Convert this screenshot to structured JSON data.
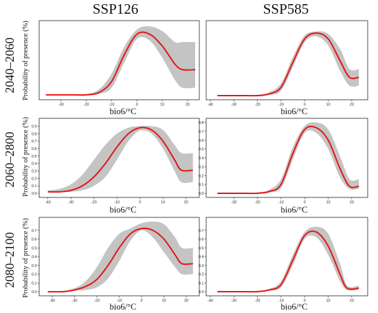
{
  "columns": [
    "SSP126",
    "SSP585"
  ],
  "rows": [
    "2040–2060",
    "2060–2800",
    "2080–2100"
  ],
  "ylabel": "Probability of presence (%)",
  "xlabel": "bio6/°C",
  "chart_data": [
    {
      "type": "line",
      "row": "2040–2060",
      "scenario": "SSP126",
      "xlim": [
        -37,
        23
      ],
      "ylim": [
        0,
        0.9
      ],
      "xticks": [
        -30,
        -20,
        -10,
        0,
        10,
        20
      ],
      "yticks": [],
      "x": [
        -36,
        -25,
        -20,
        -15,
        -10,
        -5,
        0,
        5,
        10,
        15,
        18,
        23
      ],
      "y": [
        0.01,
        0.01,
        0.01,
        0.04,
        0.18,
        0.52,
        0.78,
        0.78,
        0.63,
        0.4,
        0.33,
        0.33
      ],
      "lower": [
        0.01,
        0.01,
        0.01,
        0.02,
        0.1,
        0.42,
        0.72,
        0.7,
        0.48,
        0.2,
        0.1,
        0.1
      ],
      "upper": [
        0.01,
        0.01,
        0.02,
        0.08,
        0.28,
        0.62,
        0.84,
        0.88,
        0.82,
        0.68,
        0.68,
        0.68
      ]
    },
    {
      "type": "line",
      "row": "2040–2060",
      "scenario": "SSP585",
      "xlim": [
        -40,
        25
      ],
      "ylim": [
        0,
        0.85
      ],
      "xticks": [
        -40,
        -30,
        -20,
        -10,
        0,
        10,
        20
      ],
      "yticks": [],
      "x": [
        -37,
        -25,
        -20,
        -15,
        -10,
        -5,
        0,
        5,
        10,
        15,
        19,
        23
      ],
      "y": [
        0.0,
        0.0,
        0.0,
        0.02,
        0.1,
        0.4,
        0.68,
        0.75,
        0.68,
        0.42,
        0.22,
        0.22
      ],
      "lower": [
        0.0,
        0.0,
        0.0,
        0.01,
        0.06,
        0.34,
        0.64,
        0.71,
        0.6,
        0.3,
        0.12,
        0.12
      ],
      "upper": [
        0.0,
        0.0,
        0.01,
        0.04,
        0.15,
        0.46,
        0.72,
        0.77,
        0.74,
        0.56,
        0.32,
        0.32
      ]
    },
    {
      "type": "line",
      "row": "2060–2800",
      "scenario": "SSP126",
      "xlim": [
        -42,
        24
      ],
      "ylim": [
        0,
        0.95
      ],
      "xticks": [
        -40,
        -30,
        -20,
        -10,
        0,
        10,
        20
      ],
      "yticks": [
        0.0,
        0.1,
        0.2,
        0.3,
        0.4,
        0.5,
        0.6,
        0.7,
        0.8,
        0.9
      ],
      "x": [
        -40,
        -35,
        -30,
        -25,
        -20,
        -15,
        -10,
        -5,
        0,
        5,
        10,
        15,
        18,
        23
      ],
      "y": [
        0.02,
        0.02,
        0.04,
        0.1,
        0.22,
        0.4,
        0.62,
        0.8,
        0.88,
        0.85,
        0.7,
        0.45,
        0.31,
        0.31
      ],
      "lower": [
        0.01,
        0.01,
        0.02,
        0.04,
        0.1,
        0.22,
        0.45,
        0.7,
        0.84,
        0.8,
        0.6,
        0.3,
        0.15,
        0.15
      ],
      "upper": [
        0.04,
        0.06,
        0.12,
        0.25,
        0.45,
        0.65,
        0.8,
        0.88,
        0.9,
        0.9,
        0.85,
        0.65,
        0.54,
        0.54
      ]
    },
    {
      "type": "line",
      "row": "2060–2800",
      "scenario": "SSP585",
      "xlim": [
        -40,
        25
      ],
      "ylim": [
        0,
        0.8
      ],
      "xticks": [
        -30,
        -20,
        -10,
        0,
        10,
        20
      ],
      "yticks": [
        0.0,
        0.1,
        0.2,
        0.3,
        0.4,
        0.5,
        0.6,
        0.7,
        0.8
      ],
      "x": [
        -37,
        -25,
        -20,
        -15,
        -10,
        -5,
        0,
        5,
        10,
        15,
        19,
        23
      ],
      "y": [
        0.0,
        0.0,
        0.0,
        0.02,
        0.1,
        0.45,
        0.72,
        0.74,
        0.6,
        0.28,
        0.08,
        0.08
      ],
      "lower": [
        0.0,
        0.0,
        0.0,
        0.01,
        0.06,
        0.38,
        0.68,
        0.68,
        0.5,
        0.18,
        0.05,
        0.05
      ],
      "upper": [
        0.0,
        0.0,
        0.01,
        0.04,
        0.16,
        0.52,
        0.76,
        0.8,
        0.72,
        0.42,
        0.16,
        0.16
      ]
    },
    {
      "type": "line",
      "row": "2080–2100",
      "scenario": "SSP126",
      "xlim": [
        -44,
        24
      ],
      "ylim": [
        0,
        0.8
      ],
      "xticks": [
        -40,
        -30,
        -20,
        -10,
        0,
        10,
        20
      ],
      "yticks": [
        0.0,
        0.1,
        0.2,
        0.3,
        0.4,
        0.5,
        0.6,
        0.7
      ],
      "x": [
        -42,
        -35,
        -30,
        -25,
        -20,
        -15,
        -10,
        -5,
        0,
        5,
        10,
        15,
        18,
        23
      ],
      "y": [
        0.0,
        0.0,
        0.02,
        0.06,
        0.14,
        0.3,
        0.5,
        0.66,
        0.72,
        0.7,
        0.6,
        0.42,
        0.32,
        0.32
      ],
      "lower": [
        0.0,
        0.0,
        0.01,
        0.02,
        0.05,
        0.15,
        0.35,
        0.58,
        0.7,
        0.62,
        0.45,
        0.28,
        0.2,
        0.2
      ],
      "upper": [
        0.0,
        0.01,
        0.04,
        0.12,
        0.28,
        0.5,
        0.66,
        0.72,
        0.78,
        0.8,
        0.77,
        0.62,
        0.5,
        0.5
      ]
    },
    {
      "type": "line",
      "row": "2080–2100",
      "scenario": "SSP585",
      "xlim": [
        -40,
        25
      ],
      "ylim": [
        0,
        0.8
      ],
      "xticks": [
        -40,
        -30,
        -20,
        -10,
        0,
        10,
        20
      ],
      "yticks": [
        0.0,
        0.1,
        0.2,
        0.3,
        0.4,
        0.5,
        0.6,
        0.7
      ],
      "x": [
        -37,
        -25,
        -20,
        -15,
        -10,
        -5,
        0,
        5,
        10,
        15,
        18,
        23
      ],
      "y": [
        0.0,
        0.0,
        0.0,
        0.02,
        0.08,
        0.36,
        0.64,
        0.68,
        0.52,
        0.2,
        0.04,
        0.04
      ],
      "lower": [
        0.0,
        0.0,
        0.0,
        0.01,
        0.05,
        0.3,
        0.6,
        0.62,
        0.42,
        0.12,
        0.02,
        0.02
      ],
      "upper": [
        0.0,
        0.0,
        0.01,
        0.03,
        0.12,
        0.42,
        0.68,
        0.74,
        0.66,
        0.32,
        0.07,
        0.07
      ]
    }
  ]
}
